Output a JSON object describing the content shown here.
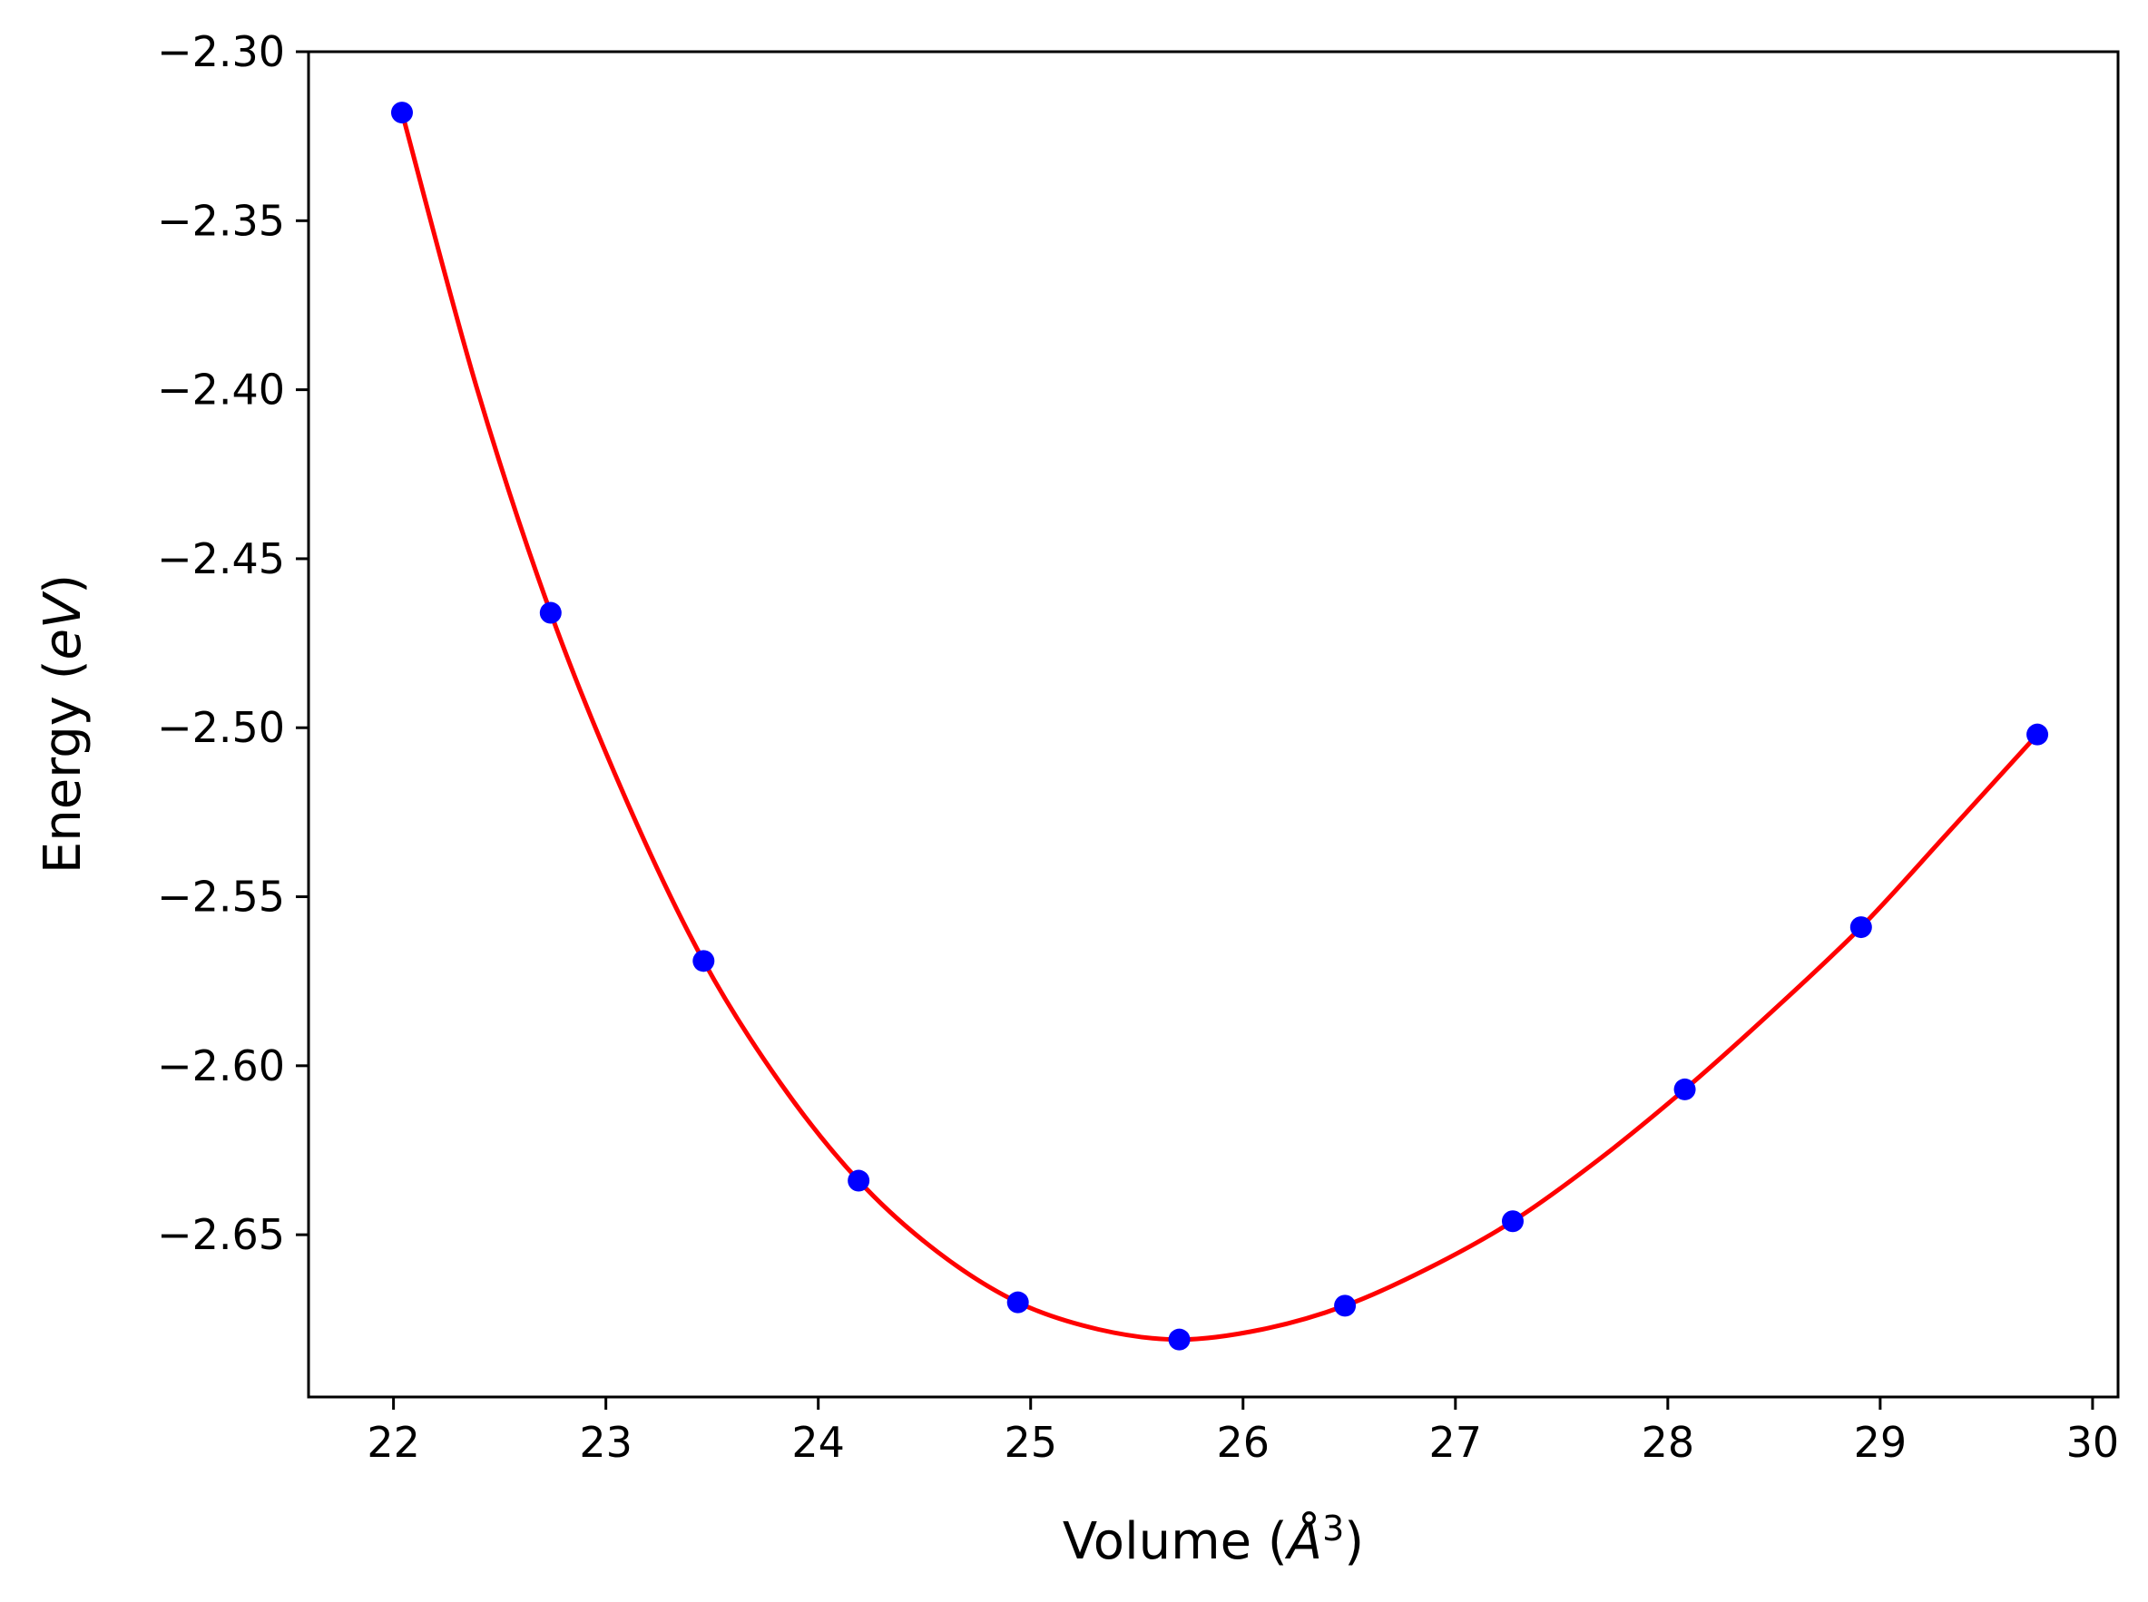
{
  "chart_data": {
    "type": "line",
    "title": "",
    "xlabel": {
      "prefix": "Volume (",
      "italic": "Å",
      "sup": "3",
      "suffix": ")"
    },
    "ylabel": {
      "prefix": "Energy (",
      "italic": "eV",
      "suffix": ")"
    },
    "xlim": [
      21.6,
      30.12
    ],
    "ylim": [
      -2.698,
      -2.3
    ],
    "grid": false,
    "x_ticks": [
      22,
      23,
      24,
      25,
      26,
      27,
      28,
      29,
      30
    ],
    "x_tick_labels": [
      "22",
      "23",
      "24",
      "25",
      "26",
      "27",
      "28",
      "29",
      "30"
    ],
    "y_ticks": [
      -2.3,
      -2.35,
      -2.4,
      -2.45,
      -2.5,
      -2.55,
      -2.6,
      -2.65
    ],
    "y_tick_labels": [
      "−2.30",
      "−2.35",
      "−2.40",
      "−2.45",
      "−2.50",
      "−2.55",
      "−2.60",
      "−2.65"
    ],
    "series": [
      {
        "kind": "points",
        "color": "#0000ff",
        "x": [
          22.04,
          22.74,
          23.46,
          24.19,
          24.94,
          25.7,
          26.48,
          27.27,
          28.08,
          28.91,
          29.74
        ],
        "y": [
          -2.318,
          -2.466,
          -2.569,
          -2.634,
          -2.67,
          -2.681,
          -2.671,
          -2.646,
          -2.607,
          -2.559,
          -2.502
        ]
      },
      {
        "kind": "fit-curve",
        "color": "#ff0000",
        "x": [
          22.04,
          22.39,
          22.74,
          23.1,
          23.46,
          23.82,
          24.19,
          24.56,
          24.94,
          25.32,
          25.7,
          26.09,
          26.48,
          26.87,
          27.27,
          27.67,
          28.08,
          28.49,
          28.91,
          29.32,
          29.74
        ],
        "y": [
          -2.318,
          -2.399,
          -2.466,
          -2.522,
          -2.569,
          -2.605,
          -2.634,
          -2.655,
          -2.67,
          -2.678,
          -2.681,
          -2.678,
          -2.671,
          -2.66,
          -2.646,
          -2.628,
          -2.607,
          -2.584,
          -2.559,
          -2.531,
          -2.502
        ]
      }
    ]
  }
}
